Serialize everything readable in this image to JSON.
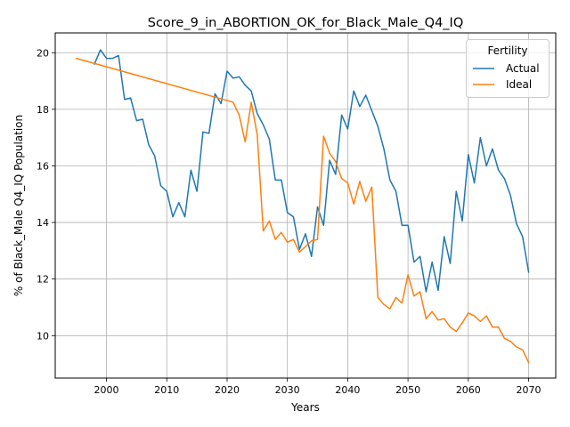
{
  "chart_data": {
    "type": "line",
    "title": "Score_9_in_ABORTION_OK_for_Black_Male_Q4_IQ",
    "xlabel": "Years",
    "ylabel": "% of Black_Male Q4_IQ Population",
    "xlim": [
      1991.5,
      2074.5
    ],
    "ylim": [
      8.5,
      20.7
    ],
    "xticks": [
      2000,
      2010,
      2020,
      2030,
      2040,
      2050,
      2060,
      2070
    ],
    "yticks": [
      10,
      12,
      14,
      16,
      18,
      20
    ],
    "grid": true,
    "legend": {
      "title": "Fertility",
      "placement": "top-right"
    },
    "series": [
      {
        "name": "Actual",
        "color": "#1f77b4",
        "x": [
          1998,
          1999,
          2000,
          2001,
          2002,
          2003,
          2004,
          2005,
          2006,
          2007,
          2008,
          2009,
          2010,
          2011,
          2012,
          2013,
          2014,
          2015,
          2016,
          2017,
          2018,
          2019,
          2020,
          2021,
          2022,
          2023,
          2024,
          2025,
          2026,
          2027,
          2028,
          2029,
          2030,
          2031,
          2032,
          2033,
          2034,
          2035,
          2036,
          2037,
          2038,
          2039,
          2040,
          2041,
          2042,
          2043,
          2044,
          2045,
          2046,
          2047,
          2048,
          2049,
          2050,
          2051,
          2052,
          2053,
          2054,
          2055,
          2056,
          2057,
          2058,
          2059,
          2060,
          2061,
          2062,
          2063,
          2064,
          2065,
          2066,
          2067,
          2068,
          2069,
          2070
        ],
        "values": [
          19.6,
          20.1,
          19.8,
          19.8,
          19.9,
          18.35,
          18.4,
          17.6,
          17.65,
          16.75,
          16.35,
          15.3,
          15.1,
          14.2,
          14.7,
          14.2,
          15.85,
          15.1,
          17.2,
          17.15,
          18.55,
          18.2,
          19.35,
          19.1,
          19.15,
          18.85,
          18.65,
          17.85,
          17.45,
          16.95,
          15.5,
          15.5,
          14.35,
          14.2,
          13.05,
          13.6,
          12.8,
          14.55,
          13.9,
          16.2,
          15.7,
          17.8,
          17.3,
          18.65,
          18.1,
          18.5,
          17.95,
          17.4,
          16.6,
          15.5,
          15.1,
          13.9,
          13.9,
          12.6,
          12.8,
          11.55,
          12.6,
          11.6,
          13.5,
          12.55,
          15.1,
          14.05,
          16.4,
          15.4,
          17.0,
          16.0,
          16.6,
          15.85,
          15.55,
          14.95,
          13.95,
          13.5,
          12.25
        ]
      },
      {
        "name": "Ideal",
        "color": "#ff7f0e",
        "x": [
          1995,
          2021,
          2022,
          2023,
          2024,
          2025,
          2026,
          2027,
          2028,
          2029,
          2030,
          2031,
          2032,
          2033,
          2034,
          2035,
          2036,
          2037,
          2038,
          2039,
          2040,
          2041,
          2042,
          2043,
          2044,
          2045,
          2046,
          2047,
          2048,
          2049,
          2050,
          2051,
          2052,
          2053,
          2054,
          2055,
          2056,
          2057,
          2058,
          2059,
          2060,
          2061,
          2062,
          2063,
          2064,
          2065,
          2066,
          2067,
          2068,
          2069,
          2070
        ],
        "values": [
          19.8,
          18.25,
          17.8,
          16.85,
          18.25,
          17.1,
          13.7,
          14.05,
          13.4,
          13.65,
          13.3,
          13.4,
          12.95,
          13.15,
          13.35,
          13.4,
          17.05,
          16.45,
          16.15,
          15.55,
          15.4,
          14.65,
          15.45,
          14.75,
          15.25,
          11.35,
          11.1,
          10.95,
          11.35,
          11.15,
          12.15,
          11.4,
          11.55,
          10.6,
          10.85,
          10.55,
          10.6,
          10.3,
          10.15,
          10.45,
          10.8,
          10.7,
          10.5,
          10.7,
          10.3,
          10.3,
          9.9,
          9.8,
          9.6,
          9.5,
          9.05
        ]
      }
    ]
  }
}
